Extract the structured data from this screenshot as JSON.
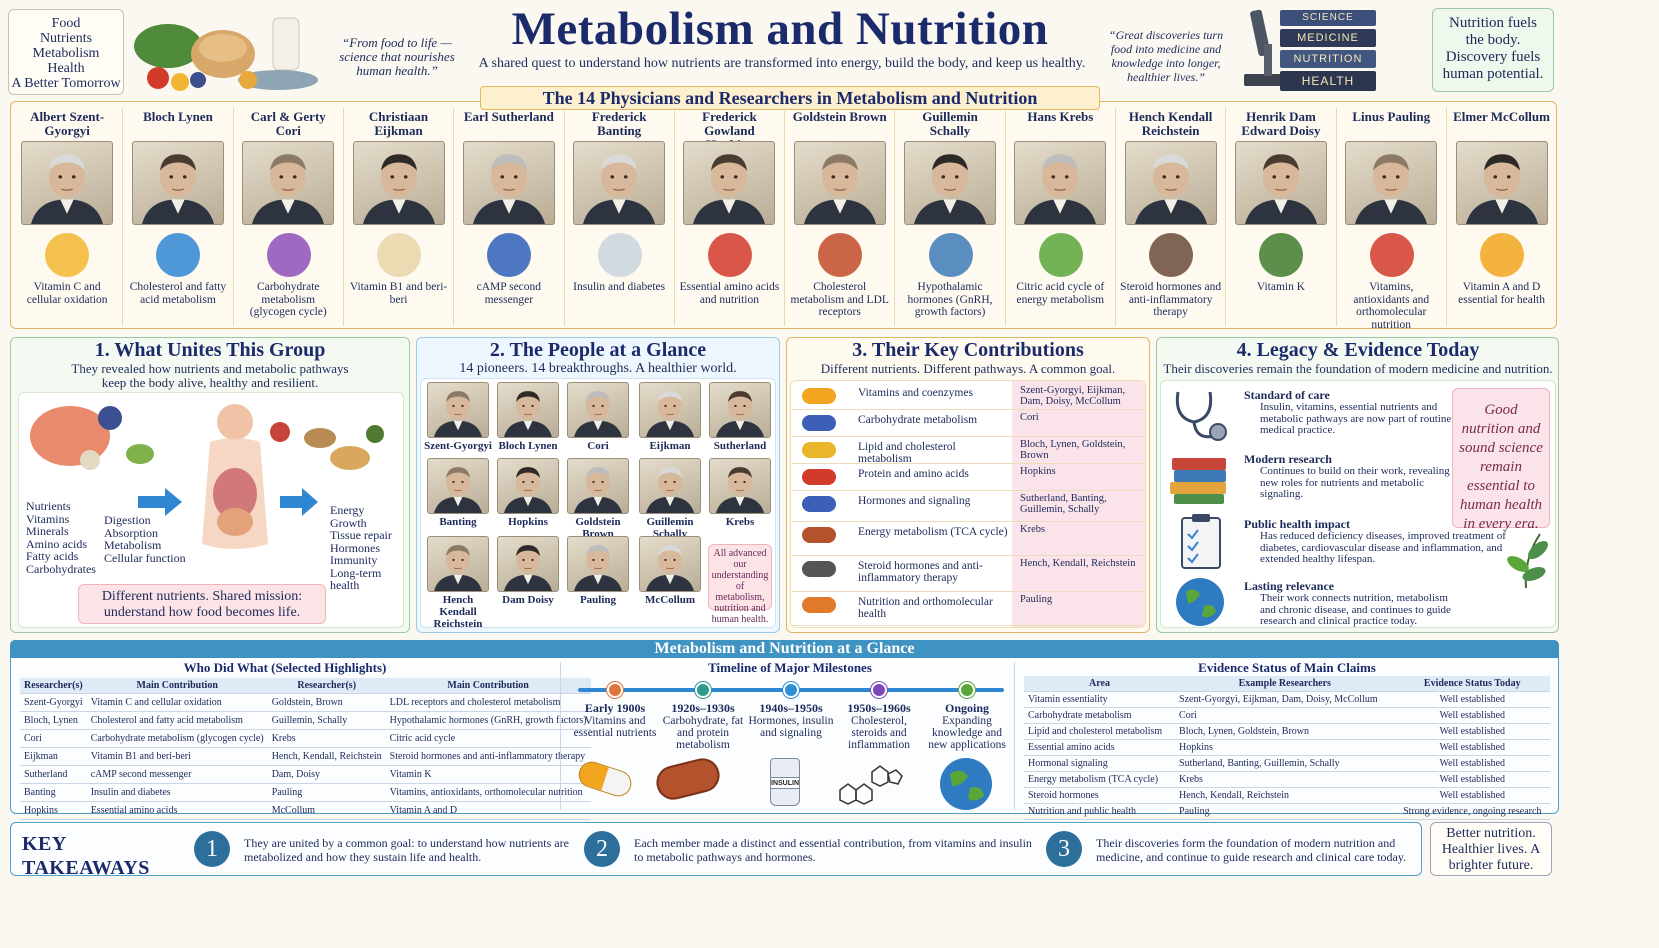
{
  "header": {
    "title": "Metabolism and Nutrition",
    "subtitle": "A shared quest to understand how nutrients are transformed into energy, build the body, and keep us healthy.",
    "quote_left": "“From food to life — science that nourishes human health.”",
    "quote_right": "“Great discoveries turn food into medicine and knowledge into longer, healthier lives.”",
    "left_box": [
      "Food",
      "Nutrients",
      "Metabolism",
      "Health",
      "A Better Tomorrow"
    ],
    "right_box": "Nutrition fuels the body. Discovery fuels human potential.",
    "books": [
      "SCIENCE",
      "MEDICINE",
      "NUTRITION",
      "HEALTH"
    ]
  },
  "researchers": {
    "title": "The 14 Physicians and Researchers in Metabolism and Nutrition",
    "items": [
      {
        "name": "Albert Szent-Gyorgyi",
        "caption": "Vitamin C and cellular oxidation"
      },
      {
        "name": "Bloch Lynen",
        "caption": "Cholesterol and fatty acid metabolism"
      },
      {
        "name": "Carl & Gerty Cori",
        "caption": "Carbohydrate metabolism (glycogen cycle)"
      },
      {
        "name": "Christiaan Eijkman",
        "caption": "Vitamin B1 and beri-beri"
      },
      {
        "name": "Earl Sutherland",
        "caption": "cAMP second messenger"
      },
      {
        "name": "Frederick Banting",
        "caption": "Insulin and diabetes"
      },
      {
        "name": "Frederick Gowland Hopkins",
        "caption": "Essential amino acids and nutrition"
      },
      {
        "name": "Goldstein Brown",
        "caption": "Cholesterol metabolism and LDL receptors"
      },
      {
        "name": "Guillemin Schally",
        "caption": "Hypothalamic hormones (GnRH, growth factors)"
      },
      {
        "name": "Hans Krebs",
        "caption": "Citric acid cycle of energy metabolism"
      },
      {
        "name": "Hench Kendall Reichstein",
        "caption": "Steroid hormones and anti-inflammatory therapy"
      },
      {
        "name": "Henrik Dam Edward Doisy",
        "caption": "Vitamin K"
      },
      {
        "name": "Linus Pauling",
        "caption": "Vitamins, antioxidants and orthomolecular nutrition"
      },
      {
        "name": "Elmer McCollum",
        "caption": "Vitamin A and D essential for health"
      }
    ],
    "insulin_label": "INSULIN",
    "citric_label": "Citric acid cycle"
  },
  "unites": {
    "title": "1.  What Unites This Group",
    "text": "They revealed how nutrients and metabolic pathways keep the body alive, healthy and resilient.",
    "left_list": [
      "Nutrients",
      "Vitamins",
      "Minerals",
      "Amino acids",
      "Fatty acids",
      "Carbohydrates"
    ],
    "middle_list": [
      "Digestion",
      "Absorption",
      "Metabolism",
      "Cellular function"
    ],
    "right_list": [
      "Energy",
      "Growth",
      "Tissue repair",
      "Hormones",
      "Immunity",
      "Long-term health"
    ],
    "mission": "Different nutrients. Shared mission: understand how food becomes life."
  },
  "people": {
    "title": "2.  The People at a Glance",
    "subtitle": "14 pioneers. 14 breakthroughs. A healthier world.",
    "names": [
      "Szent-Gyorgyi",
      "Bloch Lynen",
      "Cori",
      "Eijkman",
      "Sutherland",
      "Banting",
      "Hopkins",
      "Goldstein Brown",
      "Guillemin Schally",
      "Krebs",
      "Hench Kendall Reichstein",
      "Dam Doisy",
      "Pauling",
      "McCollum"
    ],
    "note": "All advanced our understanding of metabolism, nutrition and human health."
  },
  "contrib": {
    "title": "3.  Their Key Contributions",
    "subtitle": "Different nutrients. Different pathways. A common goal.",
    "rows": [
      {
        "topic": "Vitamins and coenzymes",
        "who": "Szent-Gyorgyi, Eijkman, Dam, Doisy, McCollum"
      },
      {
        "topic": "Carbohydrate metabolism",
        "who": "Cori"
      },
      {
        "topic": "Lipid and cholesterol metabolism",
        "who": "Bloch, Lynen, Goldstein, Brown"
      },
      {
        "topic": "Protein and amino acids",
        "who": "Hopkins"
      },
      {
        "topic": "Hormones and signaling",
        "who": "Sutherland, Banting, Guillemin, Schally"
      },
      {
        "topic": "Energy metabolism (TCA cycle)",
        "who": "Krebs"
      },
      {
        "topic": "Steroid hormones and anti-inflammatory therapy",
        "who": "Hench, Kendall, Reichstein"
      },
      {
        "topic": "Nutrition and orthomolecular health",
        "who": "Pauling"
      }
    ]
  },
  "legacy": {
    "title": "4.  Legacy & Evidence Today",
    "subtitle": "Their discoveries remain the foundation of modern medicine and nutrition.",
    "items": [
      {
        "head": "Standard of care",
        "text": "Insulin, vitamins, essential nutrients and metabolic pathways are now part of routine medical practice."
      },
      {
        "head": "Modern research",
        "text": "Continues to build on their work, revealing new roles for nutrients and metabolic signaling."
      },
      {
        "head": "Public health impact",
        "text": "Has reduced deficiency diseases, improved treatment of diabetes, cardiovascular disease and inflammation, and extended healthy lifespan."
      },
      {
        "head": "Lasting relevance",
        "text": "Their work connects nutrition, metabolism and chronic disease, and continues to guide research and clinical practice today."
      }
    ],
    "quote": "Good nutrition and sound science remain essential to human health in every era."
  },
  "glance": {
    "title": "Metabolism and Nutrition at a Glance",
    "who": {
      "title": "Who Did What (Selected Highlights)",
      "headers": [
        "Researcher(s)",
        "Main Contribution",
        "Researcher(s)",
        "Main Contribution"
      ],
      "rows": [
        [
          "Szent-Gyorgyi",
          "Vitamin C and cellular oxidation",
          "Goldstein, Brown",
          "LDL receptors and cholesterol metabolism"
        ],
        [
          "Bloch, Lynen",
          "Cholesterol and fatty acid metabolism",
          "Guillemin, Schally",
          "Hypothalamic hormones (GnRH, growth factors)"
        ],
        [
          "Cori",
          "Carbohydrate metabolism (glycogen cycle)",
          "Krebs",
          "Citric acid cycle"
        ],
        [
          "Eijkman",
          "Vitamin B1 and beri-beri",
          "Hench, Kendall, Reichstein",
          "Steroid hormones and anti-inflammatory therapy"
        ],
        [
          "Sutherland",
          "cAMP second messenger",
          "Dam, Doisy",
          "Vitamin K"
        ],
        [
          "Banting",
          "Insulin and diabetes",
          "Pauling",
          "Vitamins, antioxidants, orthomolecular nutrition"
        ],
        [
          "Hopkins",
          "Essential amino acids",
          "McCollum",
          "Vitamin A and D"
        ]
      ]
    },
    "timeline": {
      "title": "Timeline of Major Milestones",
      "items": [
        {
          "period": "Early 1900s",
          "text": "Vitamins and essential nutrients",
          "color": "#e0763a"
        },
        {
          "period": "1920s–1930s",
          "text": "Carbohydrate, fat and protein metabolism",
          "color": "#2f9a8e"
        },
        {
          "period": "1940s–1950s",
          "text": "Hormones, insulin and signaling",
          "color": "#2d8fd6"
        },
        {
          "period": "1950s–1960s",
          "text": "Cholesterol, steroids and inflammation",
          "color": "#7a4bb8"
        },
        {
          "period": "Ongoing",
          "text": "Expanding knowledge and new applications",
          "color": "#5aa63b"
        }
      ]
    },
    "evidence": {
      "title": "Evidence Status of Main Claims",
      "headers": [
        "Area",
        "Example Researchers",
        "Evidence Status Today"
      ],
      "rows": [
        [
          "Vitamin essentiality",
          "Szent-Gyorgyi, Eijkman, Dam, Doisy, McCollum",
          "Well established"
        ],
        [
          "Carbohydrate metabolism",
          "Cori",
          "Well established"
        ],
        [
          "Lipid and cholesterol metabolism",
          "Bloch, Lynen, Goldstein, Brown",
          "Well established"
        ],
        [
          "Essential amino acids",
          "Hopkins",
          "Well established"
        ],
        [
          "Hormonal signaling",
          "Sutherland, Banting, Guillemin, Schally",
          "Well established"
        ],
        [
          "Energy metabolism (TCA cycle)",
          "Krebs",
          "Well established"
        ],
        [
          "Steroid hormones",
          "Hench, Kendall, Reichstein",
          "Well established"
        ],
        [
          "Nutrition and public health",
          "Pauling",
          "Strong evidence, ongoing research"
        ]
      ]
    }
  },
  "takeaways": {
    "title": "KEY TAKEAWAYS",
    "items": [
      {
        "num": "1",
        "text": "They are united by a common goal: to understand how nutrients are metabolized and how they sustain life and health."
      },
      {
        "num": "2",
        "text": "Each member made a distinct and essential contribution, from vitamins and insulin to metabolic pathways and hormones."
      },
      {
        "num": "3",
        "text": "Their discoveries form the foundation of modern nutrition and medicine, and continue to guide research and clinical care today."
      }
    ],
    "closing": "Better nutrition. Healthier lives. A brighter future."
  }
}
